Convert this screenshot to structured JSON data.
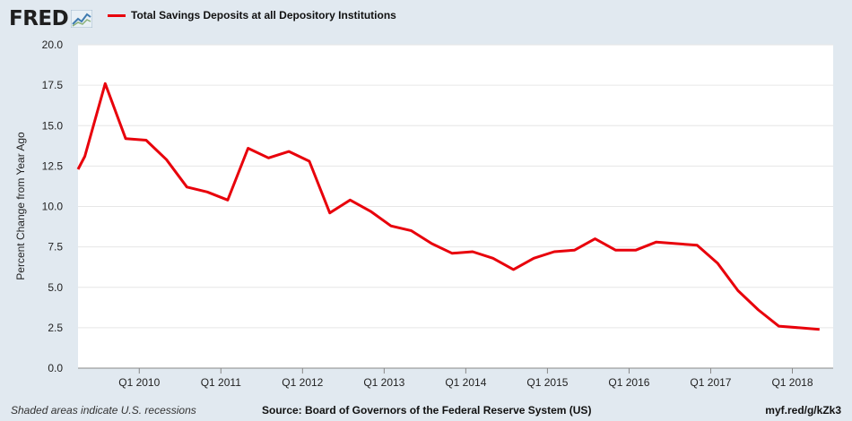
{
  "header": {
    "logo_text": "FRED",
    "logo_icon": "line-chart-icon",
    "legend_label": "Total Savings Deposits at all Depository Institutions",
    "legend_color": "#e8000b"
  },
  "footer": {
    "note": "Shaded areas indicate U.S. recessions",
    "source": "Source: Board of Governors of the Federal Reserve System (US)",
    "link": "myf.red/g/kZk3"
  },
  "chart_data": {
    "type": "line",
    "title": "",
    "xlabel": "",
    "ylabel": "Percent Change from Year Ago",
    "ylim": [
      0,
      20
    ],
    "yticks": [
      "0.0",
      "2.5",
      "5.0",
      "7.5",
      "10.0",
      "12.5",
      "15.0",
      "17.5",
      "20.0"
    ],
    "xticks": [
      {
        "label": "Q1 2010",
        "x": "2010-01"
      },
      {
        "label": "Q1 2011",
        "x": "2011-01"
      },
      {
        "label": "Q1 2012",
        "x": "2012-01"
      },
      {
        "label": "Q1 2013",
        "x": "2013-01"
      },
      {
        "label": "Q1 2014",
        "x": "2014-01"
      },
      {
        "label": "Q1 2015",
        "x": "2015-01"
      },
      {
        "label": "Q1 2016",
        "x": "2016-01"
      },
      {
        "label": "Q1 2017",
        "x": "2017-01"
      },
      {
        "label": "Q1 2018",
        "x": "2018-01"
      }
    ],
    "xlim": [
      "2009-04",
      "2018-07"
    ],
    "grid": true,
    "legend": "top-left",
    "series": [
      {
        "name": "Total Savings Deposits at all Depository Institutions",
        "color": "#e8000b",
        "x": [
          "2009-04",
          "2009-05",
          "2009-08",
          "2009-11",
          "2010-02",
          "2010-05",
          "2010-08",
          "2010-11",
          "2011-02",
          "2011-05",
          "2011-08",
          "2011-11",
          "2012-02",
          "2012-05",
          "2012-08",
          "2012-11",
          "2013-02",
          "2013-05",
          "2013-08",
          "2013-11",
          "2014-02",
          "2014-05",
          "2014-08",
          "2014-11",
          "2015-02",
          "2015-05",
          "2015-08",
          "2015-11",
          "2016-02",
          "2016-05",
          "2016-08",
          "2016-11",
          "2017-02",
          "2017-05",
          "2017-08",
          "2017-11",
          "2018-02",
          "2018-05"
        ],
        "values": [
          12.3,
          13.1,
          17.6,
          14.2,
          14.1,
          12.9,
          11.2,
          10.9,
          10.4,
          13.6,
          13.0,
          13.4,
          12.8,
          9.6,
          10.4,
          9.7,
          8.8,
          8.5,
          7.7,
          7.1,
          7.2,
          6.8,
          6.1,
          6.8,
          7.2,
          7.3,
          8.0,
          7.3,
          7.3,
          7.8,
          7.7,
          7.6,
          6.5,
          4.8,
          3.6,
          2.6,
          2.5,
          2.4
        ]
      }
    ]
  }
}
